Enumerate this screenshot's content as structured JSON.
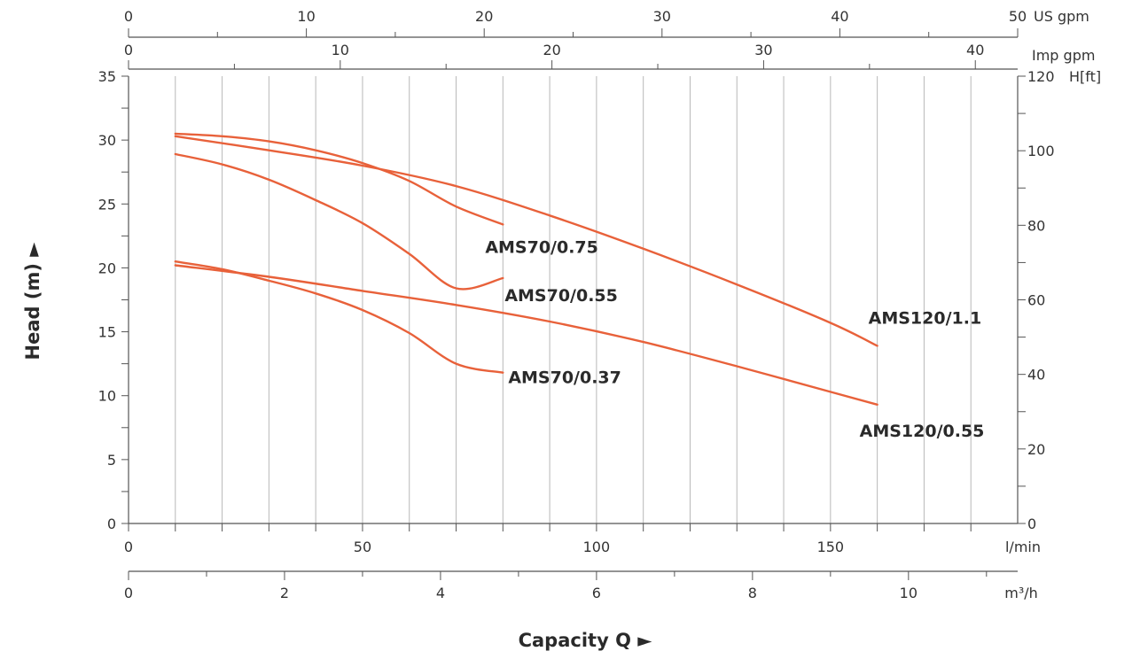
{
  "chart_data": {
    "type": "line",
    "title": "",
    "xlabel": "Capacity Q",
    "xlabel_arrow": "►",
    "ylabel": "Head (m)",
    "ylabel_arrow": "►",
    "primary_x": {
      "unit": "l/min",
      "range": [
        0,
        190
      ],
      "ticks": [
        0,
        50,
        100,
        150
      ],
      "grid_step": 10
    },
    "secondary_x_m3h": {
      "unit": "m³/h",
      "range": [
        0,
        11.4
      ],
      "ticks": [
        0,
        2,
        4,
        6,
        8,
        10
      ],
      "minor_step": 1
    },
    "top_x_us_gpm": {
      "unit": "US gpm",
      "range": [
        0,
        50
      ],
      "ticks": [
        0,
        10,
        20,
        30,
        40,
        50
      ],
      "minor_step": 5
    },
    "top_x_imp_gpm": {
      "unit": "Imp gpm",
      "range": [
        0,
        42
      ],
      "ticks": [
        0,
        10,
        20,
        30,
        40
      ],
      "minor_step": 5
    },
    "y_left": {
      "unit": "m",
      "range": [
        0,
        35
      ],
      "ticks": [
        0,
        5,
        10,
        15,
        20,
        25,
        30,
        35
      ],
      "minor_step": 2.5
    },
    "y_right": {
      "unit": "H[ft]",
      "range": [
        0,
        120
      ],
      "ticks": [
        0,
        20,
        40,
        60,
        80,
        100,
        120
      ],
      "minor_step": 10
    },
    "grid": true,
    "curve_color": "#e8613a",
    "series": [
      {
        "name": "AMS70/0.75",
        "x": [
          10,
          20,
          30,
          40,
          50,
          60,
          70,
          80
        ],
        "y": [
          30.5,
          30.3,
          29.9,
          29.2,
          28.2,
          26.8,
          24.8,
          23.4
        ]
      },
      {
        "name": "AMS70/0.55",
        "x": [
          10,
          20,
          30,
          40,
          50,
          60,
          70,
          80
        ],
        "y": [
          28.9,
          28.1,
          26.9,
          25.3,
          23.5,
          21.1,
          18.4,
          19.2
        ]
      },
      {
        "name": "AMS120/1.1",
        "x": [
          10,
          30,
          50,
          70,
          90,
          110,
          130,
          150,
          160
        ],
        "y": [
          30.3,
          29.2,
          28.0,
          26.4,
          24.1,
          21.5,
          18.7,
          15.7,
          13.9
        ]
      },
      {
        "name": "AMS70/0.37",
        "x": [
          10,
          20,
          30,
          40,
          50,
          60,
          70,
          80
        ],
        "y": [
          20.5,
          19.9,
          19.0,
          18.0,
          16.7,
          14.9,
          12.5,
          11.8
        ]
      },
      {
        "name": "AMS120/0.55",
        "x": [
          10,
          30,
          50,
          70,
          90,
          110,
          130,
          150,
          160
        ],
        "y": [
          20.2,
          19.3,
          18.2,
          17.1,
          15.8,
          14.2,
          12.3,
          10.3,
          9.3
        ]
      }
    ]
  }
}
